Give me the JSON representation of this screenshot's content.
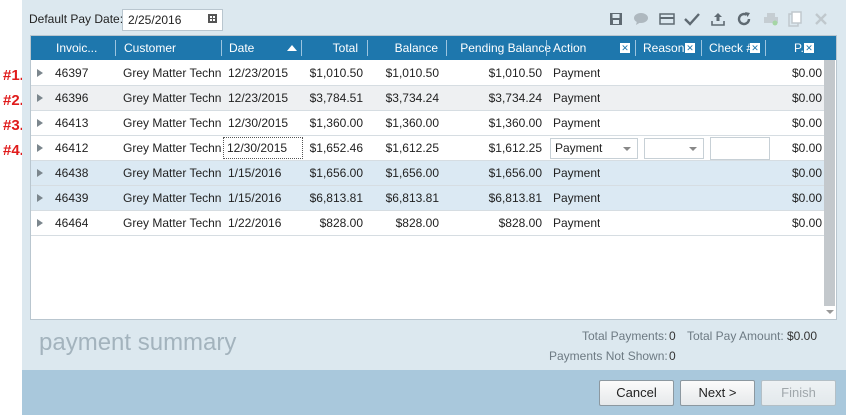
{
  "markers": [
    "#1.",
    "#2.",
    "#3.",
    "#4."
  ],
  "toolbar": {
    "pay_date_label": "Default Pay Date:",
    "pay_date_value": "2/25/2016"
  },
  "columns": {
    "invoice": "Invoic...",
    "customer": "Customer",
    "date": "Date",
    "total": "Total",
    "balance": "Balance",
    "pending_balance": "Pending Balance",
    "action": "Action",
    "reason": "Reason",
    "check": "Check #",
    "p": "P..."
  },
  "rows": [
    {
      "invoice": "46397",
      "customer": "Grey Matter Techn...",
      "date": "12/23/2015",
      "total": "$1,010.50",
      "balance": "$1,010.50",
      "pending": "$1,010.50",
      "action": "Payment",
      "p": "$0.00"
    },
    {
      "invoice": "46396",
      "customer": "Grey Matter Techn...",
      "date": "12/23/2015",
      "total": "$3,784.51",
      "balance": "$3,734.24",
      "pending": "$3,734.24",
      "action": "Payment",
      "p": "$0.00"
    },
    {
      "invoice": "46413",
      "customer": "Grey Matter Techn...",
      "date": "12/30/2015",
      "total": "$1,360.00",
      "balance": "$1,360.00",
      "pending": "$1,360.00",
      "action": "Payment",
      "p": "$0.00"
    },
    {
      "invoice": "46412",
      "customer": "Grey Matter Techn...",
      "date": "12/30/2015",
      "total": "$1,652.46",
      "balance": "$1,612.25",
      "pending": "$1,612.25",
      "action": "Payment",
      "p": "$0.00"
    },
    {
      "invoice": "46438",
      "customer": "Grey Matter Techn...",
      "date": "1/15/2016",
      "total": "$1,656.00",
      "balance": "$1,656.00",
      "pending": "$1,656.00",
      "action": "Payment",
      "p": "$0.00"
    },
    {
      "invoice": "46439",
      "customer": "Grey Matter Techn...",
      "date": "1/15/2016",
      "total": "$6,813.81",
      "balance": "$6,813.81",
      "pending": "$6,813.81",
      "action": "Payment",
      "p": "$0.00"
    },
    {
      "invoice": "46464",
      "customer": "Grey Matter Techn...",
      "date": "1/22/2016",
      "total": "$828.00",
      "balance": "$828.00",
      "pending": "$828.00",
      "action": "Payment",
      "p": "$0.00"
    }
  ],
  "summary": {
    "title": "payment summary",
    "total_payments_label": "Total Payments:",
    "total_payments_value": "0",
    "total_pay_amount_label": "Total Pay Amount:",
    "total_pay_amount_value": "$0.00",
    "not_shown_label": "Payments Not Shown:",
    "not_shown_value": "0"
  },
  "buttons": {
    "cancel": "Cancel",
    "next": "Next >",
    "finish": "Finish"
  },
  "colors": {
    "header_bg": "#1e77ad",
    "marker": "#e01b1b",
    "selected_row": "#dbe9f3",
    "hover_row": "#eef0f2"
  }
}
